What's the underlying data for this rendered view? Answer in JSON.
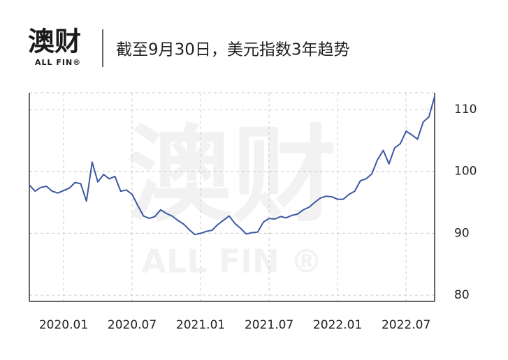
{
  "header": {
    "logo": "澳财",
    "logo_sub": "ALL FIN®"
  },
  "watermark": {
    "main": "澳财",
    "sub": "ALL FIN ®"
  },
  "chart_data": {
    "type": "line",
    "title": "截至9月30日，美元指数3年趋势",
    "categories": [
      null,
      null,
      null,
      null,
      null,
      null,
      "2020.01",
      null,
      null,
      null,
      null,
      null,
      null,
      null,
      null,
      null,
      null,
      null,
      "2020.07",
      null,
      null,
      null,
      null,
      null,
      null,
      null,
      null,
      null,
      null,
      null,
      "2021.01",
      null,
      null,
      null,
      null,
      null,
      null,
      null,
      null,
      null,
      null,
      null,
      "2021.07",
      null,
      null,
      null,
      null,
      null,
      null,
      null,
      null,
      null,
      null,
      null,
      "2022.01",
      null,
      null,
      null,
      null,
      null,
      null,
      null,
      null,
      null,
      null,
      null,
      "2022.07",
      null,
      null,
      null,
      null,
      null
    ],
    "series": [
      {
        "color": "#3d58a3",
        "values": [
          97.8,
          96.8,
          97.4,
          97.6,
          96.8,
          96.5,
          96.9,
          97.3,
          98.2,
          98.0,
          95.2,
          101.5,
          98.3,
          99.5,
          98.8,
          99.2,
          96.8,
          97.0,
          96.3,
          94.5,
          92.8,
          92.4,
          92.7,
          93.8,
          93.2,
          92.8,
          92.1,
          91.5,
          90.6,
          89.8,
          90.0,
          90.3,
          90.5,
          91.4,
          92.1,
          92.8,
          91.6,
          90.8,
          89.9,
          90.1,
          90.2,
          91.8,
          92.4,
          92.3,
          92.7,
          92.5,
          92.9,
          93.1,
          93.8,
          94.2,
          95.0,
          95.7,
          96.0,
          95.9,
          95.5,
          95.5,
          96.3,
          96.8,
          98.5,
          98.8,
          99.6,
          101.9,
          103.4,
          101.2,
          103.8,
          104.5,
          106.5,
          105.9,
          105.2,
          108.0,
          108.8,
          112.1
        ]
      }
    ],
    "ylim": [
      79,
      112.7
    ],
    "yticks": [
      80,
      90,
      100,
      110
    ],
    "grid": true
  }
}
